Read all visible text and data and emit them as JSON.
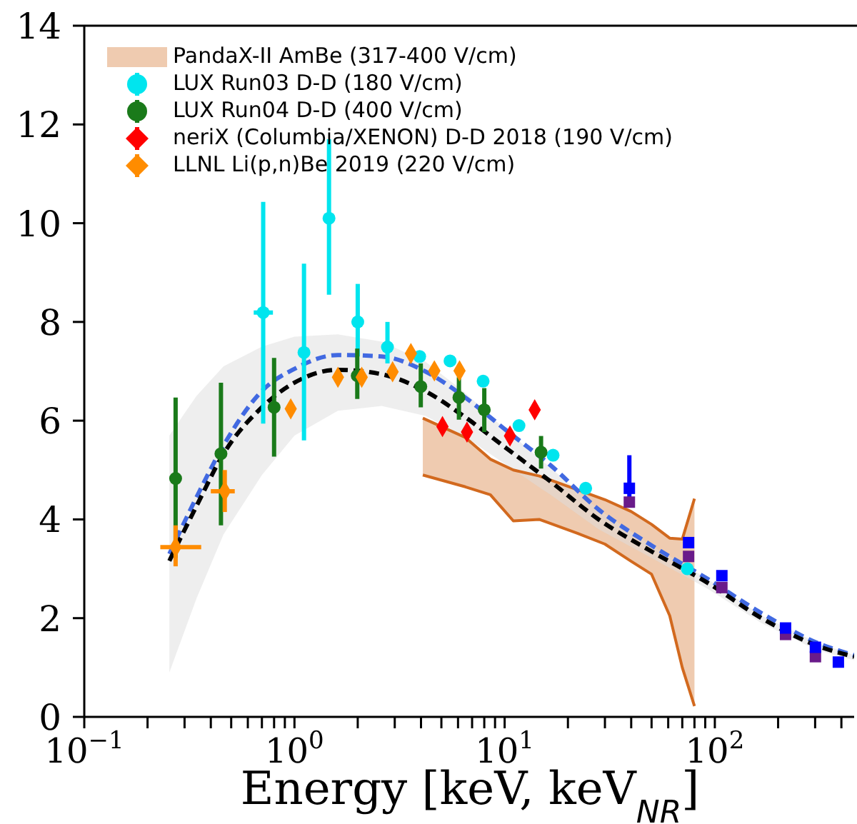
{
  "chart_data": {
    "type": "scatter",
    "xlabel": "Energy [keV, keV$_{NR}$]",
    "log": "x",
    "xlim": [
      0.1,
      460
    ],
    "ylim": [
      0,
      14
    ],
    "yticks": [
      0,
      2,
      4,
      6,
      8,
      10,
      12,
      14
    ],
    "xticks": [
      {
        "value": 0.1,
        "label": "10$^{−1}$"
      },
      {
        "value": 0.2,
        "label": null
      },
      {
        "value": 0.3,
        "label": null
      },
      {
        "value": 0.4,
        "label": null
      },
      {
        "value": 0.5,
        "label": null
      },
      {
        "value": 0.6,
        "label": null
      },
      {
        "value": 0.7,
        "label": null
      },
      {
        "value": 0.8,
        "label": null
      },
      {
        "value": 0.9,
        "label": null
      },
      {
        "value": 1,
        "label": "10$^{0}$"
      },
      {
        "value": 2,
        "label": null
      },
      {
        "value": 3,
        "label": null
      },
      {
        "value": 4,
        "label": null
      },
      {
        "value": 5,
        "label": null
      },
      {
        "value": 6,
        "label": null
      },
      {
        "value": 7,
        "label": null
      },
      {
        "value": 8,
        "label": null
      },
      {
        "value": 9,
        "label": null
      },
      {
        "value": 10,
        "label": "10$^{1}$"
      },
      {
        "value": 20,
        "label": null
      },
      {
        "value": 30,
        "label": null
      },
      {
        "value": 40,
        "label": null
      },
      {
        "value": 50,
        "label": null
      },
      {
        "value": 60,
        "label": null
      },
      {
        "value": 70,
        "label": null
      },
      {
        "value": 80,
        "label": null
      },
      {
        "value": 90,
        "label": null
      },
      {
        "value": 100,
        "label": "10$^{2}$"
      },
      {
        "value": 200,
        "label": null
      },
      {
        "value": 300,
        "label": null
      },
      {
        "value": 400,
        "label": null
      }
    ],
    "legend": "top left",
    "series": [
      {
        "type": "line",
        "name": "PandaX-II AmBe (317-400 V/cm)",
        "color": "#d2691e",
        "x": [
          4.08,
          6.5,
          8.55,
          11,
          14.6,
          22.2,
          30,
          40,
          50,
          61,
          70,
          80
        ],
        "values": [
          null,
          null,
          null,
          null,
          null,
          null,
          null,
          null,
          null,
          null,
          null,
          null
        ],
        "lower": [
          4.9,
          4.66,
          4.5,
          3.97,
          4.0,
          3.72,
          3.5,
          3.15,
          2.89,
          2.05,
          1.0,
          0.22
        ],
        "upper": [
          6.05,
          5.66,
          5.22,
          5.0,
          4.88,
          4.6,
          4.4,
          4.16,
          3.9,
          3.62,
          3.6,
          4.42
        ]
      },
      {
        "type": "line",
        "color": "#d2691e",
        "line_style": "solid",
        "marker": "none",
        "x": [
          4.08,
          6.5,
          8.55,
          11,
          14.6,
          22.2,
          30,
          40,
          50,
          61,
          70,
          80
        ],
        "values": [
          6.05,
          5.66,
          5.22,
          5.0,
          4.88,
          4.6,
          4.4,
          4.16,
          3.9,
          3.62,
          3.6,
          4.42
        ]
      },
      {
        "type": "line",
        "color": "#d2691e",
        "line_style": "solid",
        "marker": "none",
        "x": [
          4.08,
          6.5,
          8.55,
          11,
          14.6,
          22.2,
          30,
          40,
          50,
          61,
          70,
          80
        ],
        "values": [
          4.9,
          4.66,
          4.5,
          3.97,
          4.0,
          3.72,
          3.5,
          3.15,
          2.89,
          2.05,
          1.0,
          0.22
        ]
      },
      {
        "type": "line",
        "color": "#4169e1",
        "line_style": "dashed",
        "marker": "none",
        "x": [
          0.254,
          0.342,
          0.46,
          0.7,
          1.0,
          1.61,
          2.6,
          4.18,
          6.35,
          10.2,
          16.5,
          28,
          51,
          92,
          167,
          307,
          460
        ],
        "values": [
          3.3,
          4.45,
          5.5,
          6.6,
          7.05,
          7.33,
          7.3,
          7.0,
          6.5,
          5.8,
          5.1,
          4.2,
          3.45,
          2.8,
          2.1,
          1.5,
          1.25
        ]
      },
      {
        "type": "line",
        "color": "#000000",
        "line_style": "dashed",
        "marker": "none",
        "x": [
          0.254,
          0.342,
          0.46,
          0.7,
          1.0,
          1.61,
          2.6,
          4.18,
          6.35,
          10.2,
          16.5,
          28,
          51,
          92,
          167,
          307,
          460
        ],
        "values": [
          3.16,
          4.27,
          5.33,
          6.27,
          6.77,
          7.03,
          6.94,
          6.6,
          6.1,
          5.44,
          4.77,
          4.0,
          3.33,
          2.72,
          2.0,
          1.44,
          1.22
        ],
        "lower": [
          0.9,
          2.4,
          3.7,
          4.9,
          5.7,
          6.2,
          6.3,
          6.1,
          5.7,
          5.1,
          4.5,
          3.8,
          3.2,
          2.6,
          1.9,
          1.35,
          1.15
        ],
        "upper": [
          5.7,
          6.5,
          7.1,
          7.5,
          7.7,
          7.75,
          7.6,
          7.2,
          6.6,
          5.8,
          5.05,
          4.2,
          3.45,
          2.8,
          2.05,
          1.5,
          1.25
        ]
      },
      {
        "color": "#6a1b8a",
        "marker": "square",
        "x": [
          39.2,
          75,
          108,
          217,
          301
        ],
        "values": [
          4.35,
          3.25,
          2.62,
          1.67,
          1.22
        ]
      },
      {
        "color": "#0000ff",
        "marker": "square",
        "x": [
          39.2,
          75,
          108,
          217,
          301,
          387
        ],
        "values": [
          4.63,
          3.53,
          2.86,
          1.8,
          1.41,
          1.11
        ],
        "errors": [
          [
            4.4,
            5.3
          ],
          null,
          null,
          null,
          null,
          null
        ]
      },
      {
        "name": "LUX Run03 D-D (180 V/cm)",
        "color": "#00e5ee",
        "marker": "circle",
        "x": [
          0.71,
          1.11,
          1.46,
          2.0,
          2.77,
          3.94,
          5.5,
          7.9,
          11.7,
          17.0,
          24.3,
          74
        ],
        "values": [
          8.19,
          7.38,
          10.1,
          8.0,
          7.49,
          7.3,
          7.21,
          6.8,
          5.9,
          5.3,
          4.63,
          3.0
        ],
        "errors": [
          [
            5.94,
            10.43
          ],
          [
            5.6,
            9.18
          ],
          [
            8.55,
            11.7
          ],
          [
            7.3,
            8.77
          ],
          [
            7.16,
            8.0
          ],
          null,
          null,
          null,
          null,
          null,
          null,
          null
        ],
        "xerrors": [
          [
            0.64,
            0.79
          ],
          null,
          null,
          null,
          null,
          null,
          null,
          null,
          null,
          null,
          null,
          null
        ]
      },
      {
        "name": "LUX Run04 D-D (400 V/cm)",
        "color": "#1a7a1a",
        "marker": "circle",
        "x": [
          0.272,
          0.447,
          0.8,
          1.99,
          3.99,
          6.06,
          8.0,
          14.9
        ],
        "values": [
          4.83,
          5.33,
          6.27,
          6.91,
          6.69,
          6.47,
          6.22,
          5.36
        ],
        "errors": [
          [
            3.22,
            6.47
          ],
          [
            3.88,
            6.77
          ],
          [
            5.27,
            7.27
          ],
          [
            6.44,
            7.46
          ],
          [
            6.27,
            7.16
          ],
          [
            6.02,
            6.88
          ],
          [
            5.77,
            6.66
          ],
          [
            5.03,
            5.69
          ]
        ]
      },
      {
        "name": "neriX (Columbia/XENON) D-D 2018 (190 V/cm)",
        "color": "#ff0000",
        "marker": "diamond",
        "x": [
          5.06,
          6.62,
          10.6,
          13.9
        ],
        "values": [
          5.88,
          5.77,
          5.69,
          6.22
        ]
      },
      {
        "name": "LLNL Li(p,n)Be 2019 (220 V/cm)",
        "color": "#ff8c00",
        "marker": "diamond",
        "x": [
          0.272,
          0.466,
          0.96,
          1.61,
          2.09,
          2.93,
          3.58,
          4.63,
          6.1
        ],
        "values": [
          3.44,
          4.57,
          6.24,
          6.88,
          6.88,
          6.99,
          7.36,
          7.01,
          7.01
        ],
        "errors": [
          [
            3.05,
            3.88
          ],
          [
            4.15,
            5.0
          ],
          null,
          null,
          null,
          null,
          null,
          null,
          null
        ],
        "xerrors": [
          [
            0.23,
            0.36
          ],
          [
            0.4,
            0.52
          ],
          null,
          null,
          null,
          null,
          null,
          null,
          null
        ]
      }
    ]
  }
}
